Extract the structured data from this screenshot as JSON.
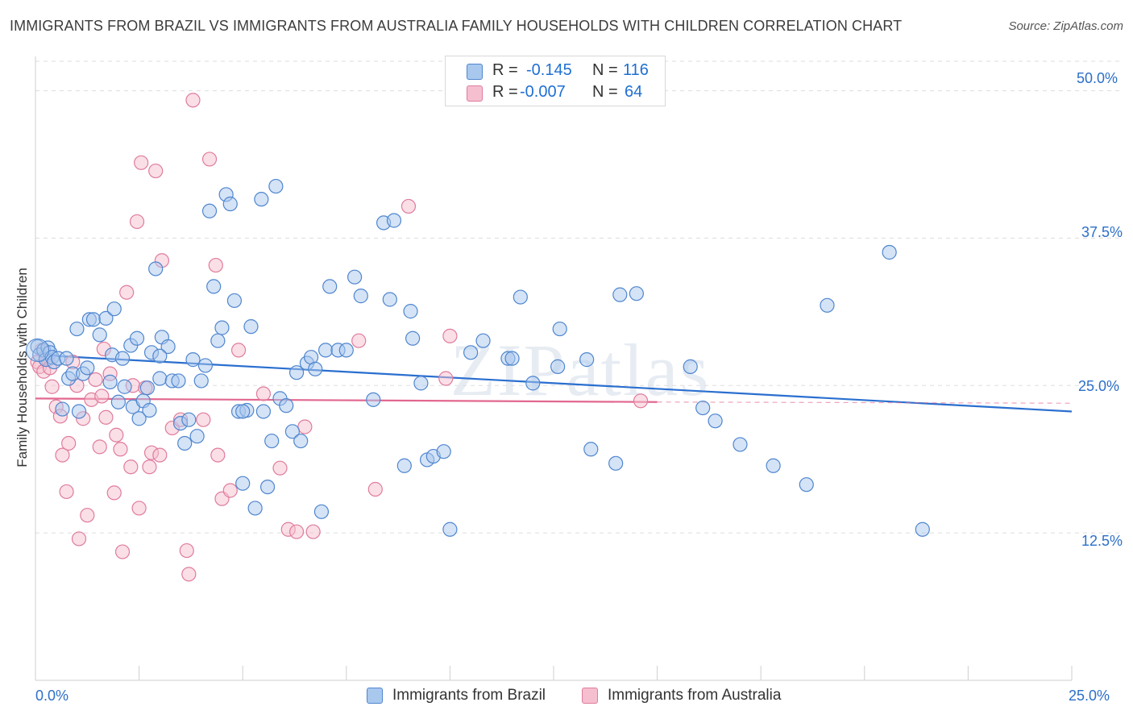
{
  "title": "IMMIGRANTS FROM BRAZIL VS IMMIGRANTS FROM AUSTRALIA FAMILY HOUSEHOLDS WITH CHILDREN CORRELATION CHART",
  "source": "Source: ZipAtlas.com",
  "watermark": "ZIPatlas",
  "legend": {
    "brazil": {
      "r_label": "R =",
      "r_value": "-0.145",
      "n_label": "N =",
      "n_value": "116"
    },
    "australia": {
      "r_label": "R =",
      "r_value": "-0.007",
      "n_label": "N =",
      "n_value": "64"
    }
  },
  "colors": {
    "brazil_fill": "#a9c8ee",
    "brazil_stroke": "#4f86cf",
    "brazil_line": "#2a6fcf",
    "australia_fill": "#f5bfd0",
    "australia_stroke": "#e07c9c",
    "australia_line": "#e2678f",
    "tick_text": "#2c6fc8",
    "grid": "#dddddd"
  },
  "chart_data": {
    "type": "scatter",
    "title": "IMMIGRANTS FROM BRAZIL VS IMMIGRANTS FROM AUSTRALIA FAMILY HOUSEHOLDS WITH CHILDREN CORRELATION CHART",
    "xlabel": "",
    "ylabel": "Family Households with Children",
    "xlim": [
      0,
      25
    ],
    "ylim": [
      0,
      52.5
    ],
    "x_tick_labels": [
      "0.0%",
      "25.0%"
    ],
    "y_ticks": [
      12.5,
      25.0,
      37.5,
      50.0
    ],
    "y_tick_labels": [
      "12.5%",
      "25.0%",
      "37.5%",
      "50.0%"
    ],
    "grid": true,
    "legend_placement": "top-center",
    "series": [
      {
        "name": "Immigrants from Brazil",
        "trend": {
          "x": [
            0,
            25
          ],
          "y": [
            27.6,
            22.8
          ]
        },
        "points": [
          [
            0.05,
            28.3
          ],
          [
            0.1,
            27.6
          ],
          [
            0.2,
            28.0
          ],
          [
            0.25,
            27.2
          ],
          [
            0.3,
            28.2
          ],
          [
            0.35,
            27.8
          ],
          [
            0.4,
            27.4
          ],
          [
            0.45,
            27.0
          ],
          [
            0.55,
            27.3
          ],
          [
            0.65,
            23.0
          ],
          [
            0.75,
            27.3
          ],
          [
            0.8,
            25.6
          ],
          [
            0.9,
            26.0
          ],
          [
            1.0,
            29.8
          ],
          [
            1.05,
            22.8
          ],
          [
            1.15,
            26.0
          ],
          [
            1.25,
            26.5
          ],
          [
            1.3,
            30.6
          ],
          [
            1.4,
            30.6
          ],
          [
            1.55,
            29.3
          ],
          [
            1.7,
            30.7
          ],
          [
            1.8,
            25.3
          ],
          [
            1.85,
            27.6
          ],
          [
            1.9,
            31.5
          ],
          [
            2.0,
            23.6
          ],
          [
            2.1,
            27.3
          ],
          [
            2.15,
            24.9
          ],
          [
            2.3,
            28.4
          ],
          [
            2.35,
            23.2
          ],
          [
            2.45,
            29.0
          ],
          [
            2.5,
            22.2
          ],
          [
            2.6,
            23.7
          ],
          [
            2.7,
            24.8
          ],
          [
            2.75,
            22.9
          ],
          [
            2.8,
            27.8
          ],
          [
            2.9,
            34.9
          ],
          [
            3.0,
            25.6
          ],
          [
            3.05,
            29.1
          ],
          [
            3.2,
            28.3
          ],
          [
            3.3,
            25.4
          ],
          [
            3.45,
            25.4
          ],
          [
            3.5,
            21.8
          ],
          [
            3.6,
            20.1
          ],
          [
            3.7,
            22.1
          ],
          [
            3.8,
            27.2
          ],
          [
            3.9,
            20.7
          ],
          [
            4.0,
            25.4
          ],
          [
            4.1,
            26.7
          ],
          [
            4.2,
            39.8
          ],
          [
            4.3,
            33.4
          ],
          [
            4.4,
            28.8
          ],
          [
            4.5,
            29.9
          ],
          [
            4.6,
            41.2
          ],
          [
            4.7,
            40.4
          ],
          [
            4.8,
            32.2
          ],
          [
            4.9,
            22.8
          ],
          [
            5.0,
            16.7
          ],
          [
            5.1,
            22.9
          ],
          [
            5.2,
            30.0
          ],
          [
            5.3,
            14.6
          ],
          [
            5.45,
            40.8
          ],
          [
            5.5,
            22.8
          ],
          [
            5.6,
            16.4
          ],
          [
            5.7,
            20.3
          ],
          [
            5.8,
            41.9
          ],
          [
            5.9,
            23.9
          ],
          [
            6.05,
            23.3
          ],
          [
            6.2,
            21.1
          ],
          [
            6.3,
            26.1
          ],
          [
            6.4,
            20.3
          ],
          [
            6.55,
            26.9
          ],
          [
            6.65,
            27.4
          ],
          [
            6.75,
            26.4
          ],
          [
            6.9,
            14.3
          ],
          [
            7.0,
            28.0
          ],
          [
            7.1,
            33.4
          ],
          [
            7.3,
            28.0
          ],
          [
            7.5,
            28.0
          ],
          [
            7.7,
            34.2
          ],
          [
            7.85,
            32.6
          ],
          [
            8.15,
            23.8
          ],
          [
            8.4,
            38.8
          ],
          [
            8.55,
            32.3
          ],
          [
            8.65,
            39.0
          ],
          [
            8.9,
            18.2
          ],
          [
            9.05,
            31.3
          ],
          [
            9.1,
            29.0
          ],
          [
            9.3,
            25.2
          ],
          [
            9.45,
            18.7
          ],
          [
            9.6,
            19.0
          ],
          [
            9.85,
            19.4
          ],
          [
            10.0,
            12.8
          ],
          [
            10.5,
            27.8
          ],
          [
            10.8,
            28.8
          ],
          [
            11.4,
            27.3
          ],
          [
            11.5,
            27.3
          ],
          [
            11.7,
            32.5
          ],
          [
            12.0,
            25.2
          ],
          [
            12.6,
            26.6
          ],
          [
            12.65,
            29.8
          ],
          [
            13.3,
            27.2
          ],
          [
            13.4,
            19.6
          ],
          [
            14.0,
            18.4
          ],
          [
            14.1,
            32.7
          ],
          [
            14.5,
            32.8
          ],
          [
            15.8,
            26.6
          ],
          [
            16.1,
            23.1
          ],
          [
            16.4,
            22.0
          ],
          [
            17.0,
            20.0
          ],
          [
            17.8,
            18.2
          ],
          [
            18.6,
            16.6
          ],
          [
            19.1,
            31.8
          ],
          [
            20.6,
            36.3
          ],
          [
            21.4,
            12.8
          ],
          [
            5.0,
            22.8
          ],
          [
            3.0,
            27.5
          ]
        ]
      },
      {
        "name": "Immigrants from Australia",
        "trend": {
          "x": [
            0,
            15
          ],
          "y": [
            23.9,
            23.6
          ]
        },
        "points": [
          [
            0.05,
            27.0
          ],
          [
            0.1,
            26.6
          ],
          [
            0.2,
            26.2
          ],
          [
            0.3,
            27.2
          ],
          [
            0.4,
            24.9
          ],
          [
            0.5,
            23.2
          ],
          [
            0.6,
            22.4
          ],
          [
            0.65,
            19.1
          ],
          [
            0.75,
            16.0
          ],
          [
            0.8,
            20.1
          ],
          [
            0.9,
            27.0
          ],
          [
            1.05,
            12.0
          ],
          [
            1.15,
            22.2
          ],
          [
            1.25,
            14.0
          ],
          [
            1.35,
            23.8
          ],
          [
            1.45,
            25.5
          ],
          [
            1.55,
            19.8
          ],
          [
            1.6,
            24.1
          ],
          [
            1.65,
            28.1
          ],
          [
            1.7,
            22.3
          ],
          [
            1.8,
            26.0
          ],
          [
            1.9,
            15.9
          ],
          [
            1.95,
            20.8
          ],
          [
            2.05,
            19.6
          ],
          [
            2.1,
            10.9
          ],
          [
            2.2,
            32.9
          ],
          [
            2.3,
            18.1
          ],
          [
            2.35,
            25.0
          ],
          [
            2.45,
            38.9
          ],
          [
            2.5,
            14.6
          ],
          [
            2.55,
            43.9
          ],
          [
            2.65,
            24.8
          ],
          [
            2.75,
            18.1
          ],
          [
            2.8,
            19.3
          ],
          [
            2.9,
            43.2
          ],
          [
            3.0,
            19.1
          ],
          [
            3.05,
            35.6
          ],
          [
            3.3,
            21.4
          ],
          [
            3.5,
            22.1
          ],
          [
            3.65,
            11.0
          ],
          [
            3.7,
            9.0
          ],
          [
            3.8,
            49.2
          ],
          [
            4.05,
            22.1
          ],
          [
            4.2,
            44.2
          ],
          [
            4.35,
            35.2
          ],
          [
            4.4,
            19.1
          ],
          [
            4.5,
            15.4
          ],
          [
            4.7,
            16.1
          ],
          [
            4.9,
            28.0
          ],
          [
            5.5,
            24.3
          ],
          [
            5.9,
            18.0
          ],
          [
            6.1,
            12.8
          ],
          [
            6.3,
            12.6
          ],
          [
            6.5,
            21.5
          ],
          [
            6.7,
            12.6
          ],
          [
            7.8,
            28.8
          ],
          [
            8.2,
            16.2
          ],
          [
            9.0,
            40.2
          ],
          [
            9.9,
            25.6
          ],
          [
            10.0,
            29.2
          ],
          [
            14.6,
            23.7
          ],
          [
            0.15,
            28.0
          ],
          [
            1.0,
            25.0
          ],
          [
            0.35,
            26.5
          ]
        ]
      }
    ]
  }
}
